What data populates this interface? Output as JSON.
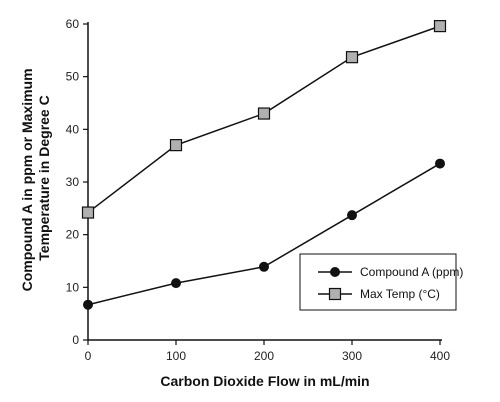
{
  "chart_data": {
    "type": "line",
    "title": "",
    "xlabel": "Carbon Dioxide Flow in mL/min",
    "ylabel": [
      "Compound A in ppm or Maximum",
      "Temperature in Degree C"
    ],
    "x": [
      0,
      100,
      200,
      300,
      400
    ],
    "xlim": [
      0,
      400
    ],
    "ylim": [
      0,
      60
    ],
    "xticks": [
      "0",
      "100",
      "200",
      "300",
      "400"
    ],
    "yticks": [
      "0",
      "10",
      "20",
      "30",
      "40",
      "50",
      "60"
    ],
    "grid": false,
    "legend_position": "bottom-right",
    "series": [
      {
        "name": "Compound A (ppm)",
        "marker": "circle",
        "color": "#111111",
        "values": [
          6.7,
          10.8,
          13.9,
          23.7,
          33.5
        ]
      },
      {
        "name": "Max Temp (°C)",
        "marker": "square",
        "color": "#b0b0b0",
        "values": [
          24.2,
          37.0,
          43.0,
          53.7,
          59.6
        ]
      }
    ]
  }
}
